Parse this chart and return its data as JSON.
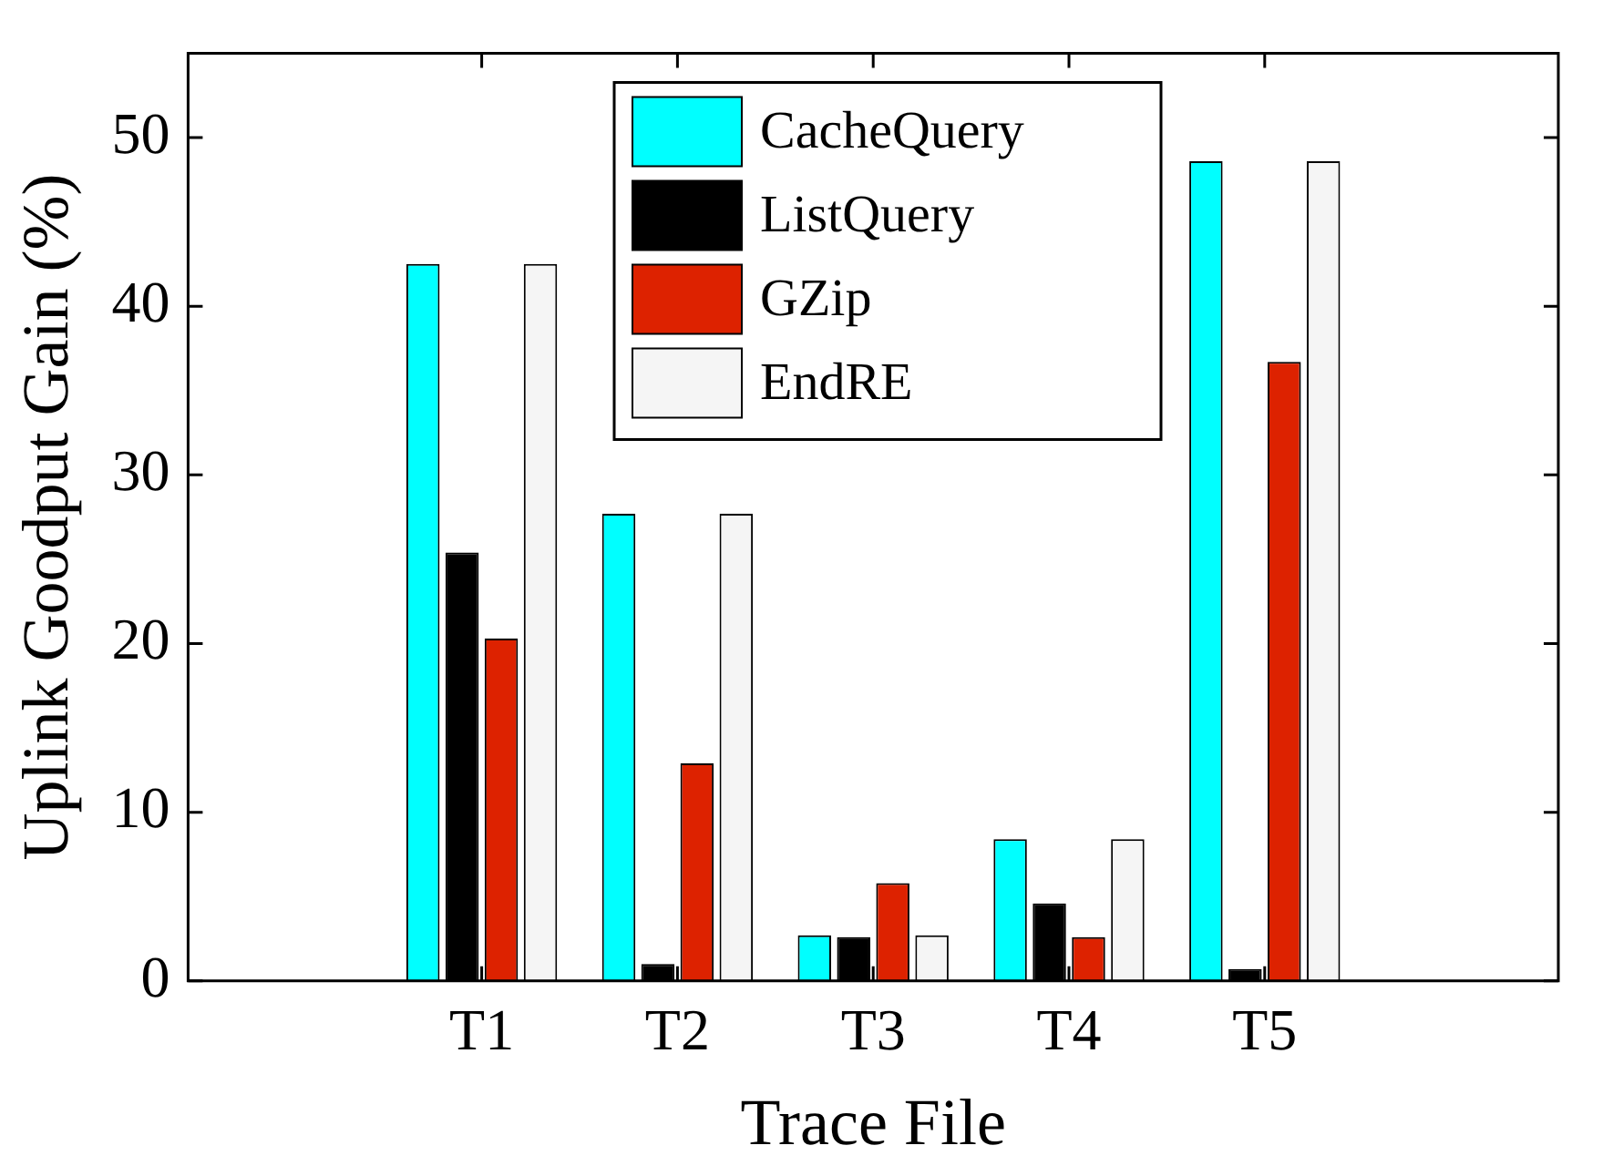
{
  "chart_data": {
    "type": "bar",
    "xlabel": "Trace File",
    "ylabel": "Uplink Goodput Gain (%)",
    "categories": [
      null,
      "T1",
      "T2",
      "T3",
      "T4",
      "T5",
      null
    ],
    "series": [
      {
        "name": "CacheQuery",
        "color": "#00ffff",
        "values": [
          null,
          42.5,
          27.7,
          2.7,
          8.4,
          48.6,
          null
        ]
      },
      {
        "name": "ListQuery",
        "color": "#000000",
        "values": [
          null,
          25.4,
          1.0,
          2.6,
          4.6,
          0.7,
          null
        ]
      },
      {
        "name": "GZip",
        "color": "#dd2200",
        "values": [
          null,
          20.3,
          12.9,
          5.8,
          2.6,
          36.7,
          null
        ]
      },
      {
        "name": "EndRE",
        "color": "#f5f5f5",
        "values": [
          null,
          42.5,
          27.7,
          2.7,
          8.4,
          48.6,
          null
        ]
      }
    ],
    "ylim": [
      0,
      55
    ],
    "yticks": [
      0,
      10,
      20,
      30,
      40,
      50
    ],
    "grid": false,
    "legend": "top right"
  }
}
